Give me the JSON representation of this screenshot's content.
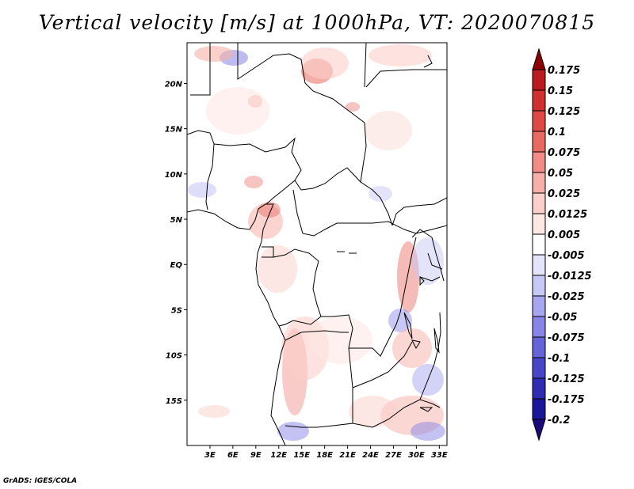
{
  "title": "Vertical velocity [m/s] at 1000hPa, VT: 2020070815",
  "credit": "GrADS: IGES/COLA",
  "map": {
    "lon_range": [
      0,
      34
    ],
    "lat_range": [
      -20,
      24.5
    ],
    "lat_ticks": [
      {
        "value": 20,
        "label": "20N"
      },
      {
        "value": 15,
        "label": "15N"
      },
      {
        "value": 10,
        "label": "10N"
      },
      {
        "value": 5,
        "label": "5N"
      },
      {
        "value": 0,
        "label": "EQ"
      },
      {
        "value": -5,
        "label": "5S"
      },
      {
        "value": -10,
        "label": "10S"
      },
      {
        "value": -15,
        "label": "15S"
      }
    ],
    "lon_ticks": [
      {
        "value": 3,
        "label": "3E"
      },
      {
        "value": 6,
        "label": "6E"
      },
      {
        "value": 9,
        "label": "9E"
      },
      {
        "value": 12,
        "label": "12E"
      },
      {
        "value": 15,
        "label": "15E"
      },
      {
        "value": 18,
        "label": "18E"
      },
      {
        "value": 21,
        "label": "21E"
      },
      {
        "value": 24,
        "label": "24E"
      },
      {
        "value": 27,
        "label": "27E"
      },
      {
        "value": 30,
        "label": "30E"
      },
      {
        "value": 33,
        "label": "33E"
      }
    ]
  },
  "colorbar": {
    "levels": [
      {
        "label": "0.175",
        "color": "#a50f15"
      },
      {
        "label": "0.15",
        "color": "#bb1b1f"
      },
      {
        "label": "0.125",
        "color": "#d0312e"
      },
      {
        "label": "0.1",
        "color": "#de4a43"
      },
      {
        "label": "0.075",
        "color": "#e8695f"
      },
      {
        "label": "0.05",
        "color": "#f08c84"
      },
      {
        "label": "0.025",
        "color": "#f7b0a9"
      },
      {
        "label": "0.0125",
        "color": "#fbcfca"
      },
      {
        "label": "0.005",
        "color": "#fde8e5"
      },
      {
        "label": "-0.005",
        "color": "#ffffff"
      },
      {
        "label": "-0.0125",
        "color": "#e4e4fb"
      },
      {
        "label": "-0.025",
        "color": "#c8c8f6"
      },
      {
        "label": "-0.05",
        "color": "#a8a6ef"
      },
      {
        "label": "-0.075",
        "color": "#8785e6"
      },
      {
        "label": "-0.1",
        "color": "#6664d8"
      },
      {
        "label": "-0.125",
        "color": "#4846c6"
      },
      {
        "label": "-0.175",
        "color": "#2e2cb0"
      },
      {
        "label": "-0.2",
        "color": "#1a1899"
      }
    ],
    "top_arrow_color": "#8b0000",
    "bottom_arrow_color": "#1a0a7a"
  }
}
